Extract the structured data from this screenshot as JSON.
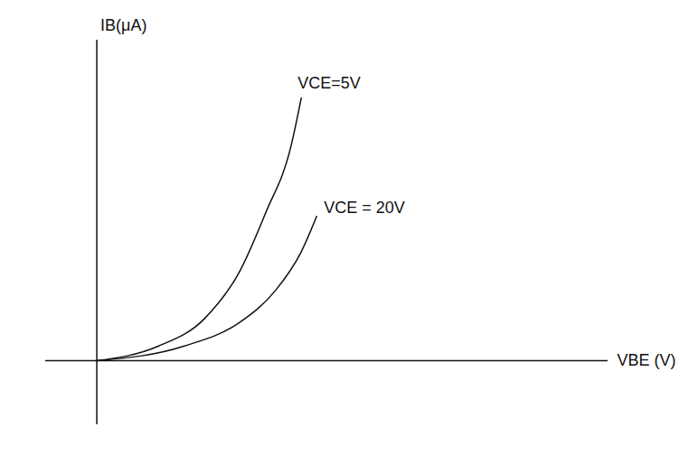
{
  "chart_data": {
    "type": "line",
    "x_label": "VBE (V)",
    "y_label": "IB(μA)",
    "xlim": [
      -0.1,
      1.0
    ],
    "ylim": [
      -20,
      100
    ],
    "xticks": [],
    "yticks": [],
    "tick_labels": false,
    "grid": false,
    "series": [
      {
        "name": "VCE=5V",
        "color": "#111111",
        "line_style": "solid",
        "x": [
          0,
          0.12,
          0.21,
          0.28,
          0.33,
          0.38,
          0.4
        ],
        "values": [
          0,
          4.5,
          13,
          28,
          46,
          67,
          82
        ]
      },
      {
        "name": "VCE = 20V",
        "color": "#111111",
        "line_style": "solid",
        "x": [
          0,
          0.17,
          0.28,
          0.35,
          0.4,
          0.43
        ],
        "values": [
          0,
          4.5,
          12,
          22,
          34,
          45
        ]
      }
    ]
  }
}
